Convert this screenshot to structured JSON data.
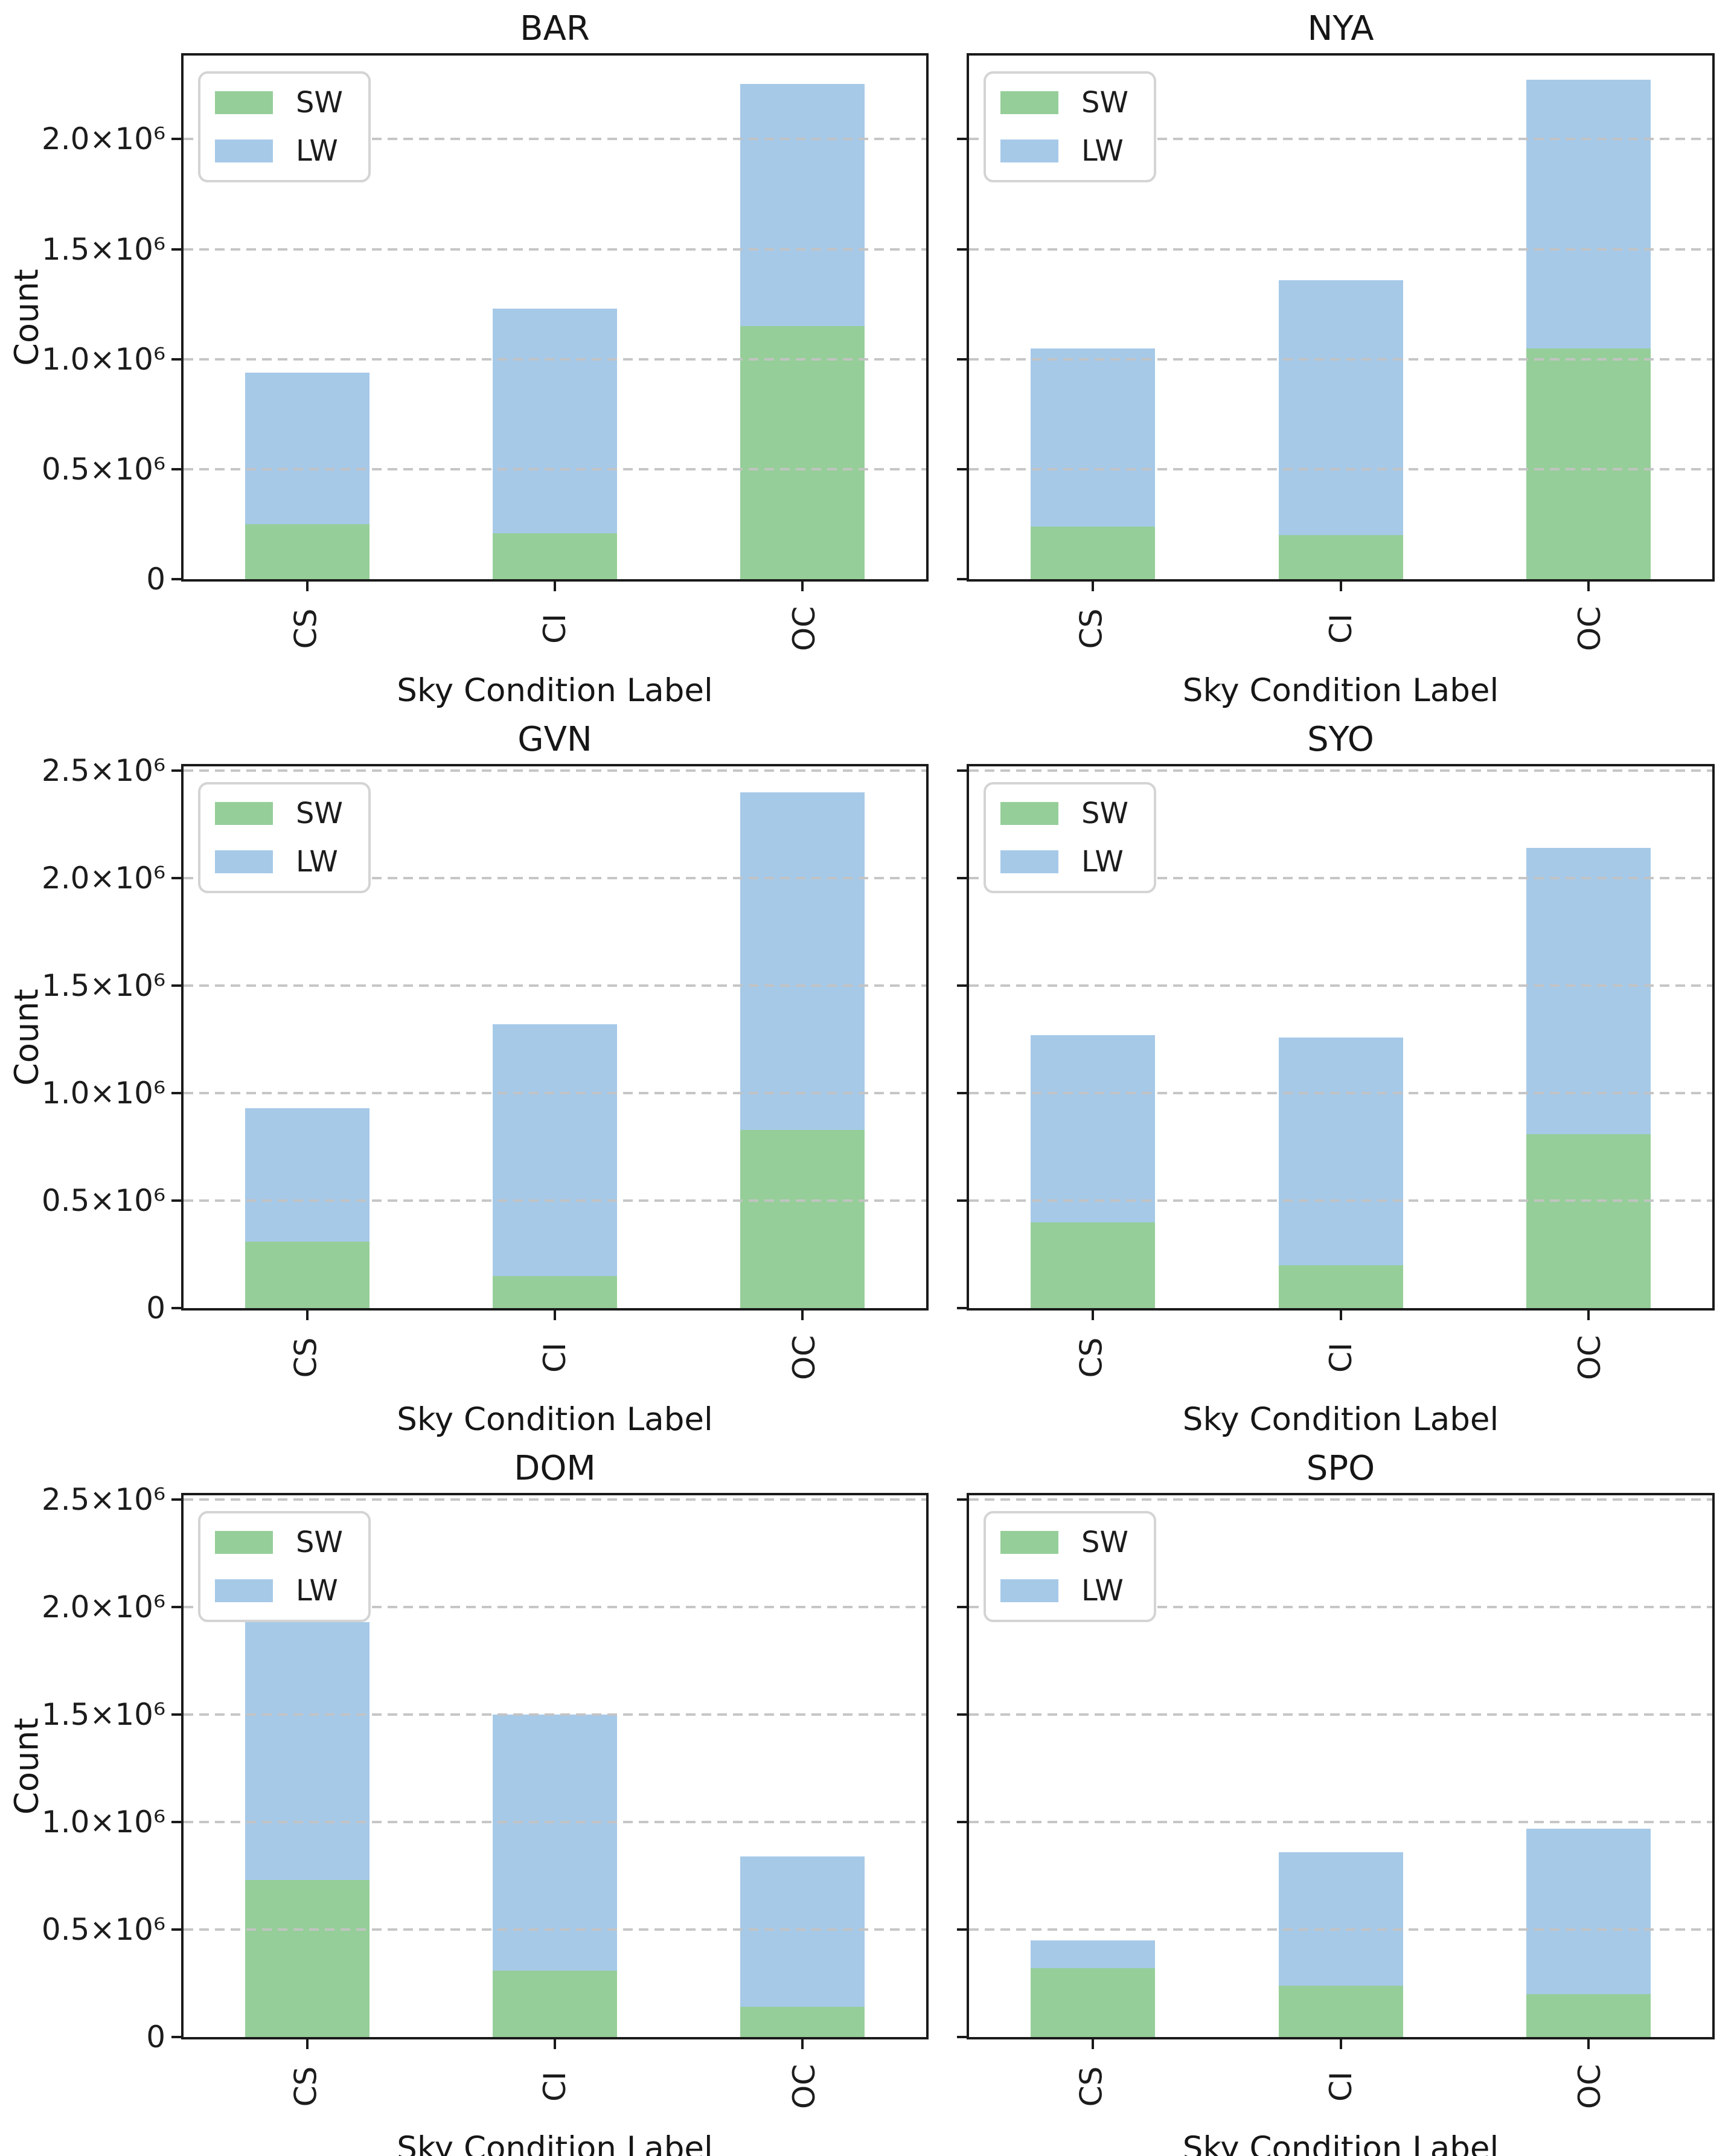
{
  "figure": {
    "background": "#ffffff",
    "text_color": "#1c1c1c",
    "axis_color": "#1a1a1a",
    "grid_color": "#c3c3c3",
    "grid_style": "dashed horizontal",
    "ylabel": "Count",
    "xlabel": "Sky Condition Label",
    "legend": {
      "labels": [
        "SW",
        "LW"
      ],
      "position": "upper left"
    },
    "series_colors": {
      "SW": "#96ce99",
      "LW": "#a6c9e8"
    }
  },
  "chart_data": [
    {
      "type": "bar",
      "stacked": true,
      "title": "BAR",
      "categories": [
        "CS",
        "CI",
        "OC"
      ],
      "series": [
        {
          "name": "SW",
          "color": "#96ce99",
          "values": [
            250000,
            210000,
            1150000
          ]
        },
        {
          "name": "LW",
          "color": "#a6c9e8",
          "values": [
            690000,
            1020000,
            1100000
          ]
        }
      ],
      "totals": [
        940000,
        1230000,
        2250000
      ],
      "ylim": [
        0,
        2380000
      ],
      "ytick_values": [
        0,
        500000,
        1000000,
        1500000,
        2000000
      ],
      "ytick_labels": [
        "0",
        "0.5×10⁶",
        "1.0×10⁶",
        "1.5×10⁶",
        "2.0×10⁶"
      ],
      "show_y_labels": true
    },
    {
      "type": "bar",
      "stacked": true,
      "title": "NYA",
      "categories": [
        "CS",
        "CI",
        "OC"
      ],
      "series": [
        {
          "name": "SW",
          "color": "#96ce99",
          "values": [
            240000,
            200000,
            1050000
          ]
        },
        {
          "name": "LW",
          "color": "#a6c9e8",
          "values": [
            810000,
            1160000,
            1220000
          ]
        }
      ],
      "totals": [
        1050000,
        1360000,
        2270000
      ],
      "ylim": [
        0,
        2380000
      ],
      "ytick_values": [
        0,
        500000,
        1000000,
        1500000,
        2000000
      ],
      "ytick_labels": [
        "0",
        "0.5×10⁶",
        "1.0×10⁶",
        "1.5×10⁶",
        "2.0×10⁶"
      ],
      "show_y_labels": false
    },
    {
      "type": "bar",
      "stacked": true,
      "title": "GVN",
      "categories": [
        "CS",
        "CI",
        "OC"
      ],
      "series": [
        {
          "name": "SW",
          "color": "#96ce99",
          "values": [
            310000,
            150000,
            830000
          ]
        },
        {
          "name": "LW",
          "color": "#a6c9e8",
          "values": [
            620000,
            1170000,
            1570000
          ]
        }
      ],
      "totals": [
        930000,
        1320000,
        2400000
      ],
      "ylim": [
        0,
        2520000
      ],
      "ytick_values": [
        0,
        500000,
        1000000,
        1500000,
        2000000,
        2500000
      ],
      "ytick_labels": [
        "0",
        "0.5×10⁶",
        "1.0×10⁶",
        "1.5×10⁶",
        "2.0×10⁶",
        "2.5×10⁶"
      ],
      "show_y_labels": true
    },
    {
      "type": "bar",
      "stacked": true,
      "title": "SYO",
      "categories": [
        "CS",
        "CI",
        "OC"
      ],
      "series": [
        {
          "name": "SW",
          "color": "#96ce99",
          "values": [
            400000,
            200000,
            810000
          ]
        },
        {
          "name": "LW",
          "color": "#a6c9e8",
          "values": [
            870000,
            1060000,
            1330000
          ]
        }
      ],
      "totals": [
        1270000,
        1260000,
        2140000
      ],
      "ylim": [
        0,
        2520000
      ],
      "ytick_values": [
        0,
        500000,
        1000000,
        1500000,
        2000000,
        2500000
      ],
      "ytick_labels": [
        "0",
        "0.5×10⁶",
        "1.0×10⁶",
        "1.5×10⁶",
        "2.0×10⁶",
        "2.5×10⁶"
      ],
      "show_y_labels": false
    },
    {
      "type": "bar",
      "stacked": true,
      "title": "DOM",
      "categories": [
        "CS",
        "CI",
        "OC"
      ],
      "series": [
        {
          "name": "SW",
          "color": "#96ce99",
          "values": [
            730000,
            310000,
            140000
          ]
        },
        {
          "name": "LW",
          "color": "#a6c9e8",
          "values": [
            1200000,
            1190000,
            700000
          ]
        }
      ],
      "totals": [
        1930000,
        1500000,
        840000
      ],
      "ylim": [
        0,
        2520000
      ],
      "ytick_values": [
        0,
        500000,
        1000000,
        1500000,
        2000000,
        2500000
      ],
      "ytick_labels": [
        "0",
        "0.5×10⁶",
        "1.0×10⁶",
        "1.5×10⁶",
        "2.0×10⁶",
        "2.5×10⁶"
      ],
      "show_y_labels": true
    },
    {
      "type": "bar",
      "stacked": true,
      "title": "SPO",
      "categories": [
        "CS",
        "CI",
        "OC"
      ],
      "series": [
        {
          "name": "SW",
          "color": "#96ce99",
          "values": [
            320000,
            240000,
            200000
          ]
        },
        {
          "name": "LW",
          "color": "#a6c9e8",
          "values": [
            130000,
            620000,
            770000
          ]
        }
      ],
      "totals": [
        450000,
        860000,
        970000
      ],
      "ylim": [
        0,
        2520000
      ],
      "ytick_values": [
        0,
        500000,
        1000000,
        1500000,
        2000000,
        2500000
      ],
      "ytick_labels": [
        "0",
        "0.5×10⁶",
        "1.0×10⁶",
        "1.5×10⁶",
        "2.0×10⁶",
        "2.5×10⁶"
      ],
      "show_y_labels": false
    }
  ]
}
